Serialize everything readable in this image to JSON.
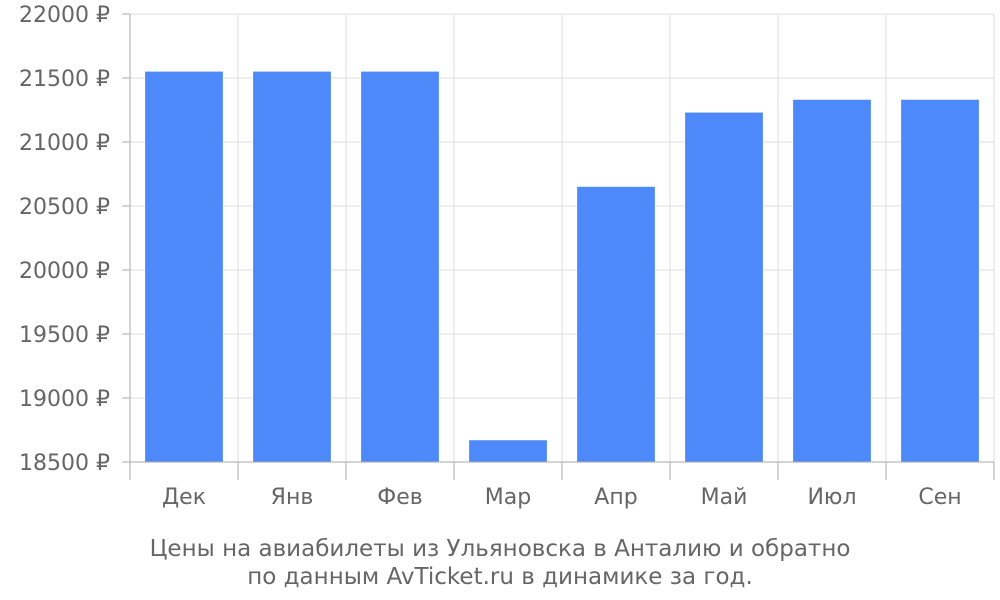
{
  "chart_data": {
    "type": "bar",
    "categories": [
      "Дек",
      "Янв",
      "Фев",
      "Мар",
      "Апр",
      "Май",
      "Июл",
      "Сен"
    ],
    "values": [
      21550,
      21550,
      21550,
      18670,
      20650,
      21230,
      21330,
      21330
    ],
    "ylim": [
      18500,
      22000
    ],
    "yticks": [
      18500,
      19000,
      19500,
      20000,
      20500,
      21000,
      21500,
      22000
    ],
    "y_tick_suffix": " ₽",
    "grid": true,
    "legend": "none",
    "caption": {
      "line1": "Цены на авиабилеты из Ульяновска в Анталию и обратно",
      "line2": "по данным AvTicket.ru в динамике за год."
    },
    "colors": {
      "bar": "#4d89f9",
      "grid": "#dddddd",
      "axis": "#aaaaaa",
      "text": "#666666"
    }
  }
}
